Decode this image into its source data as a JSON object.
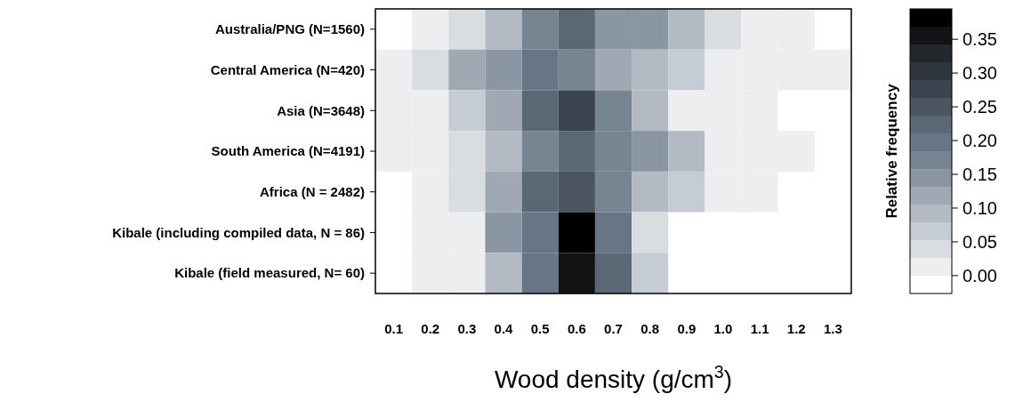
{
  "chart_data": {
    "type": "heatmap",
    "xlabel": "Wood density (g/cm$^{3}$)",
    "clabel": "Relative frequency",
    "categories": [
      "0.1",
      "0.2",
      "0.3",
      "0.4",
      "0.5",
      "0.6",
      "0.7",
      "0.8",
      "0.9",
      "1.0",
      "1.1",
      "1.2",
      "1.3"
    ],
    "y_categories": [
      "Australia/PNG (N=1560)",
      "Central America (N=420)",
      "Asia (N=3648)",
      "South America (N=4191)",
      "Africa (N = 2482)",
      "Kibale (including compiled data, N = 86)",
      "Kibale (field measured, N= 60)"
    ],
    "cells": [
      [
        null,
        0.015,
        0.04,
        0.092,
        0.17,
        0.223,
        0.145,
        0.145,
        0.092,
        0.04,
        0.015,
        0.015,
        null
      ],
      [
        0.015,
        0.04,
        0.118,
        0.145,
        0.197,
        0.17,
        0.118,
        0.092,
        0.066,
        0.015,
        0.015,
        0.015,
        0.015
      ],
      [
        0.015,
        0.015,
        0.066,
        0.118,
        0.223,
        0.276,
        0.17,
        0.092,
        0.015,
        0.015,
        0.015,
        null,
        null
      ],
      [
        0.015,
        0.015,
        0.04,
        0.092,
        0.17,
        0.223,
        0.17,
        0.145,
        0.092,
        0.015,
        0.015,
        0.015,
        null
      ],
      [
        null,
        0.015,
        0.04,
        0.118,
        0.223,
        0.25,
        0.17,
        0.092,
        0.066,
        0.015,
        0.015,
        null,
        null
      ],
      [
        null,
        0.015,
        0.015,
        0.145,
        0.197,
        0.38,
        0.197,
        0.04,
        null,
        null,
        null,
        null,
        null
      ],
      [
        null,
        0.015,
        0.015,
        0.092,
        0.197,
        0.355,
        0.223,
        0.066,
        null,
        null,
        null,
        null,
        null
      ]
    ],
    "clim": [
      -0.0265,
      0.395
    ],
    "cticks": [
      {
        "value": 0,
        "label": "0.00"
      },
      0.05,
      {
        "value": 0.1,
        "label": "0.10"
      },
      0.15,
      {
        "value": 0.2,
        "label": "0.20"
      },
      0.25,
      {
        "value": 0.3,
        "label": "0.30"
      },
      0.35
    ]
  }
}
